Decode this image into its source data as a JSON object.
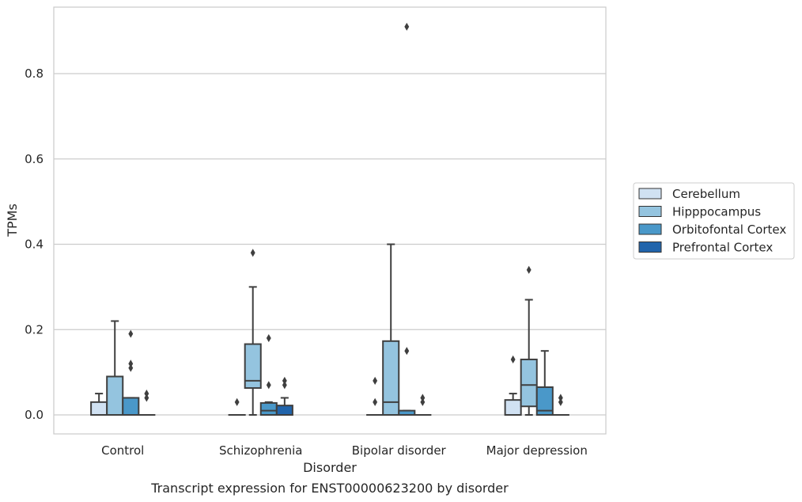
{
  "caption": "Transcript expression for ENST00000623200 by disorder",
  "chart_data": {
    "type": "box",
    "xlabel": "Disorder",
    "ylabel": "TPMs",
    "ylim": [
      -0.045,
      0.96
    ],
    "yticks": [
      0.0,
      0.2,
      0.4,
      0.6,
      0.8
    ],
    "ytick_labels": [
      "0.0",
      "0.2",
      "0.4",
      "0.6",
      "0.8"
    ],
    "grid": "horizontal",
    "legend_position": "right",
    "categories": [
      "Control",
      "Schizophrenia",
      "Bipolar disorder",
      "Major depression"
    ],
    "series": [
      {
        "name": "Cerebellum",
        "color": "#d0e1f2",
        "boxes": [
          {
            "min": 0.0,
            "q1": 0.0,
            "median": 0.0,
            "q3": 0.03,
            "max": 0.05,
            "outliers": []
          },
          {
            "min": 0.0,
            "q1": 0.0,
            "median": 0.0,
            "q3": 0.0,
            "max": 0.0,
            "outliers": [
              0.03
            ]
          },
          {
            "min": 0.0,
            "q1": 0.0,
            "median": 0.0,
            "q3": 0.0,
            "max": 0.0,
            "outliers": [
              0.08,
              0.03
            ]
          },
          {
            "min": 0.0,
            "q1": 0.0,
            "median": 0.0,
            "q3": 0.035,
            "max": 0.05,
            "outliers": [
              0.13
            ]
          }
        ]
      },
      {
        "name": "Hipppocampus",
        "color": "#94c4df",
        "boxes": [
          {
            "min": 0.0,
            "q1": 0.0,
            "median": 0.0,
            "q3": 0.09,
            "max": 0.22,
            "outliers": []
          },
          {
            "min": 0.0,
            "q1": 0.063,
            "median": 0.08,
            "q3": 0.166,
            "max": 0.3,
            "outliers": [
              0.38
            ]
          },
          {
            "min": 0.0,
            "q1": 0.0,
            "median": 0.03,
            "q3": 0.173,
            "max": 0.4,
            "outliers": []
          },
          {
            "min": 0.0,
            "q1": 0.02,
            "median": 0.07,
            "q3": 0.13,
            "max": 0.27,
            "outliers": [
              0.34
            ]
          }
        ]
      },
      {
        "name": "Orbitofontal Cortex",
        "color": "#4a98c9",
        "boxes": [
          {
            "min": 0.0,
            "q1": 0.0,
            "median": 0.0,
            "q3": 0.04,
            "max": 0.04,
            "outliers": [
              0.19,
              0.12,
              0.11
            ]
          },
          {
            "min": 0.0,
            "q1": 0.0,
            "median": 0.01,
            "q3": 0.028,
            "max": 0.03,
            "outliers": [
              0.18,
              0.07
            ]
          },
          {
            "min": 0.0,
            "q1": 0.0,
            "median": 0.0,
            "q3": 0.01,
            "max": 0.01,
            "outliers": [
              0.91,
              0.15
            ]
          },
          {
            "min": 0.0,
            "q1": 0.0,
            "median": 0.01,
            "q3": 0.065,
            "max": 0.15,
            "outliers": []
          }
        ]
      },
      {
        "name": "Prefrontal Cortex",
        "color": "#2164ab",
        "boxes": [
          {
            "min": 0.0,
            "q1": 0.0,
            "median": 0.0,
            "q3": 0.0,
            "max": 0.0,
            "outliers": [
              0.05,
              0.04
            ]
          },
          {
            "min": 0.0,
            "q1": 0.0,
            "median": 0.0,
            "q3": 0.022,
            "max": 0.04,
            "outliers": [
              0.08,
              0.07
            ]
          },
          {
            "min": 0.0,
            "q1": 0.0,
            "median": 0.0,
            "q3": 0.0,
            "max": 0.0,
            "outliers": [
              0.04,
              0.03
            ]
          },
          {
            "min": 0.0,
            "q1": 0.0,
            "median": 0.0,
            "q3": 0.0,
            "max": 0.0,
            "outliers": [
              0.04,
              0.03
            ]
          }
        ]
      }
    ]
  }
}
